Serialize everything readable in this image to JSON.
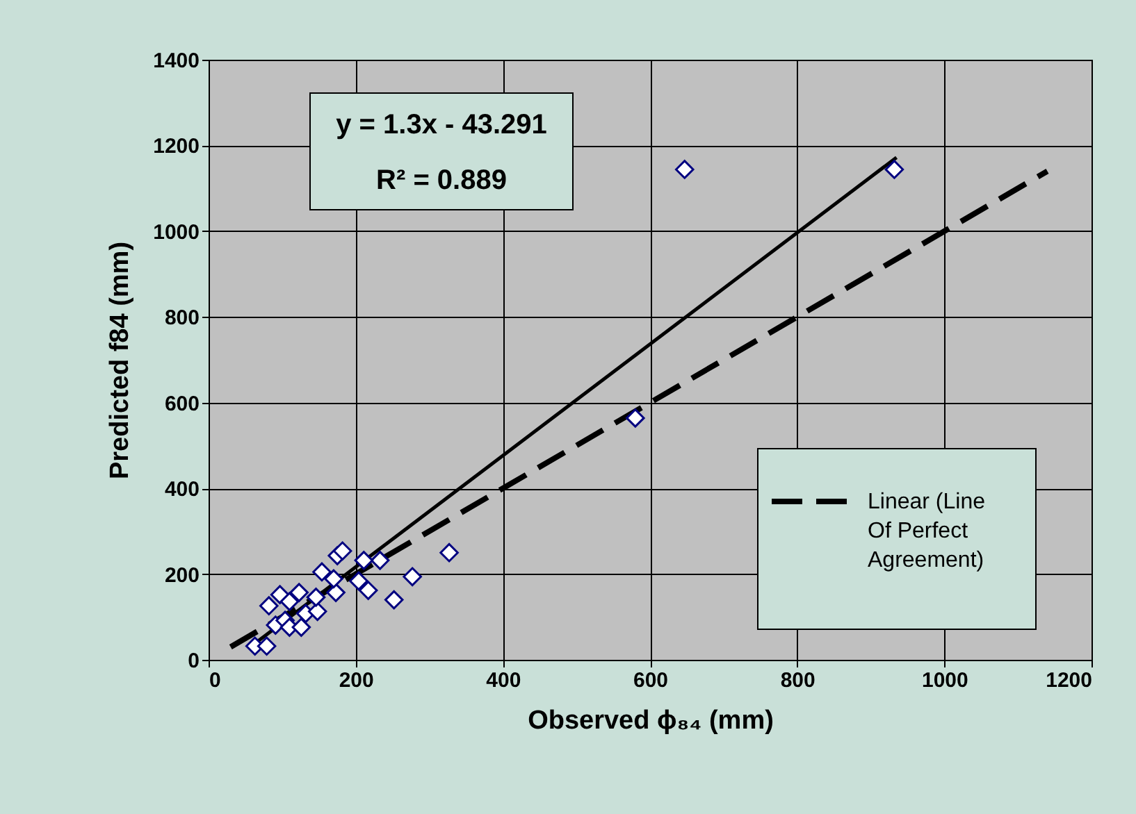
{
  "chart_data": {
    "type": "scatter",
    "xlabel": "Observed ϕ₈₄ (mm)",
    "ylabel": "Predicted f84 (mm)",
    "xlim": [
      0,
      1200
    ],
    "xticks": [
      0,
      200,
      400,
      600,
      800,
      1000,
      1200
    ],
    "ylim": [
      0,
      1400
    ],
    "yticks": [
      0,
      200,
      400,
      600,
      800,
      1000,
      1200,
      1400
    ],
    "grid": true,
    "legend": "right",
    "annotations": [
      "y = 1.3x - 43.291",
      "R² = 0.889"
    ],
    "series": [
      {
        "color": "#000080",
        "marker": "diamond",
        "x": [
          63,
          79,
          82,
          97,
          110,
          123,
          91,
          104,
          110,
          126,
          132,
          148,
          146,
          154,
          175,
          182,
          173,
          170,
          204,
          217,
          233,
          211,
          252,
          277,
          327,
          580,
          647,
          932
        ],
        "values": [
          32,
          32,
          126,
          152,
          136,
          157,
          81,
          92,
          76,
          76,
          108,
          113,
          146,
          205,
          243,
          254,
          157,
          189,
          184,
          162,
          232,
          232,
          140,
          194,
          250,
          564,
          1144,
          1144
        ]
      },
      {
        "type": "line",
        "color": "#000000",
        "line_style": "solid",
        "x": [
          62,
          935
        ],
        "values": [
          37,
          1172
        ]
      },
      {
        "type": "line",
        "name": "Linear (Line Of Perfect Agreement)",
        "color": "#000000",
        "line_style": "dashed",
        "x": [
          30,
          1140
        ],
        "values": [
          30,
          1140
        ]
      }
    ]
  }
}
